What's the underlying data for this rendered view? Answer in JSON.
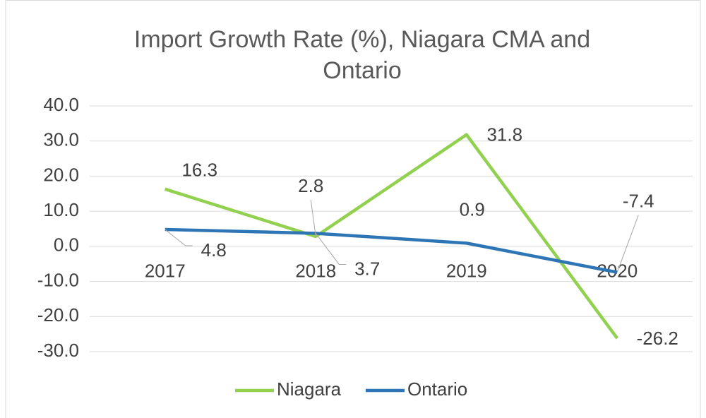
{
  "chart_data": {
    "type": "line",
    "title": "Import Growth Rate (%), Niagara CMA and Ontario",
    "categories": [
      "2017",
      "2018",
      "2019",
      "2020"
    ],
    "series": [
      {
        "name": "Niagara",
        "color": "#92d050",
        "values": [
          16.3,
          2.8,
          31.8,
          -26.2
        ]
      },
      {
        "name": "Ontario",
        "color": "#2e75b6",
        "values": [
          4.8,
          3.7,
          0.9,
          -7.4
        ]
      }
    ],
    "ylim": [
      -30,
      40
    ],
    "yticks": [
      {
        "value": -30,
        "label": "-30.0"
      },
      {
        "value": -20,
        "label": "-20.0"
      },
      {
        "value": -10,
        "label": "-10.0"
      },
      {
        "value": 0,
        "label": "0.0"
      },
      {
        "value": 10,
        "label": "10.0"
      },
      {
        "value": 20,
        "label": "20.0"
      },
      {
        "value": 30,
        "label": "30.0"
      },
      {
        "value": 40,
        "label": "40.0"
      }
    ],
    "grid": true,
    "legend": "bottom"
  }
}
